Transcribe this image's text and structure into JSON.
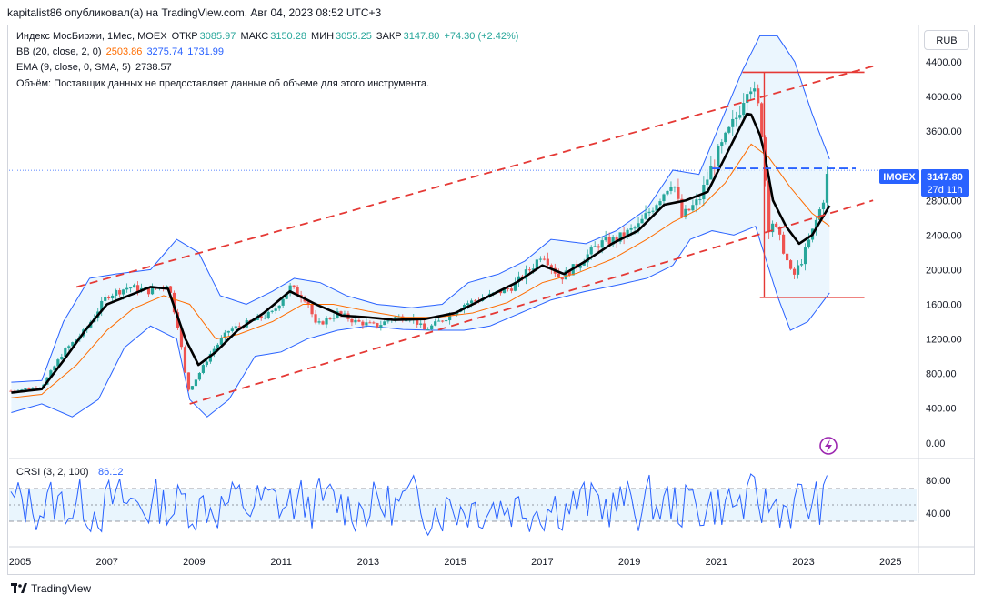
{
  "header": "kapitalist86 опубликовал(а) на TradingView.com, Авг 04, 2023 08:52 UTC+3",
  "currency_button": "RUB",
  "legend": {
    "symbol": "Индекс МосБиржи, 1Мес, MOEX",
    "open_label": "ОТКР",
    "open": "3085.97",
    "high_label": "МАКС",
    "high": "3150.28",
    "low_label": "МИН",
    "low": "3055.25",
    "close_label": "ЗАКР",
    "close": "3147.80",
    "change": "+74.30 (+2.42%)",
    "bb_label": "BB (20, close, 2, 0)",
    "bb_mid": "2503.86",
    "bb_up": "3275.74",
    "bb_low": "1731.99",
    "ema_label": "EMA (9, close, 0, SMA, 5)",
    "ema": "2738.57",
    "volume_note": "Объём: Поставщик данных не предоставляет данные об объеме для этого инструмента."
  },
  "price_tag": {
    "ticker": "IMOEX",
    "price": "3147.80",
    "countdown": "27d 11h"
  },
  "crsi": {
    "label": "CRSI (3, 2, 100)",
    "value": "86.12"
  },
  "footer": "TradingView",
  "colors": {
    "up": "#26a69a",
    "down": "#ef5350",
    "bb": "#2962ff",
    "bb_fill": "#e3f2fd",
    "bb_basis": "#ff6d00",
    "ema": "#000000",
    "trend": "#e53935",
    "hline_blue": "#2962ff",
    "price_tag": "#2962ff",
    "crsi": "#2962ff",
    "crsi_band": "#e3f2fd"
  },
  "chart_data": [
    {
      "type": "candlestick",
      "title": "Индекс МосБиржи, 1Мес, MOEX",
      "x_tick_labels": [
        "2005",
        "2007",
        "2009",
        "2011",
        "2013",
        "2015",
        "2017",
        "2019",
        "2021",
        "2023",
        "2025"
      ],
      "x_range": [
        2004.75,
        2025.6
      ],
      "y_tick_labels": [
        "0.00",
        "400.00",
        "800.00",
        "1200.00",
        "1600.00",
        "2000.00",
        "2400.00",
        "2800.00",
        "3600.00",
        "4000.00",
        "4400.00"
      ],
      "ylim": [
        -160,
        4820
      ],
      "last": {
        "open": 3085.97,
        "high": 3150.28,
        "low": 3055.25,
        "close": 3147.8,
        "ema": 2738.57,
        "bb_basis": 2503.86,
        "bb_upper": 3275.74,
        "bb_lower": 1731.99
      },
      "price_points": [
        [
          2004.8,
          600
        ],
        [
          2005.5,
          650
        ],
        [
          2006.0,
          1050
        ],
        [
          2006.5,
          1300
        ],
        [
          2007.0,
          1700
        ],
        [
          2007.5,
          1800
        ],
        [
          2008.0,
          1750
        ],
        [
          2008.4,
          1850
        ],
        [
          2008.65,
          1300
        ],
        [
          2008.85,
          600
        ],
        [
          2009.0,
          700
        ],
        [
          2009.4,
          1050
        ],
        [
          2009.8,
          1300
        ],
        [
          2010.3,
          1400
        ],
        [
          2010.8,
          1500
        ],
        [
          2011.2,
          1800
        ],
        [
          2011.6,
          1650
        ],
        [
          2011.8,
          1350
        ],
        [
          2012.3,
          1500
        ],
        [
          2012.7,
          1400
        ],
        [
          2013.2,
          1350
        ],
        [
          2013.6,
          1450
        ],
        [
          2014.0,
          1450
        ],
        [
          2014.3,
          1300
        ],
        [
          2014.8,
          1450
        ],
        [
          2015.2,
          1600
        ],
        [
          2015.8,
          1700
        ],
        [
          2016.3,
          1800
        ],
        [
          2016.8,
          2050
        ],
        [
          2017.0,
          2200
        ],
        [
          2017.4,
          1900
        ],
        [
          2017.8,
          2050
        ],
        [
          2018.3,
          2300
        ],
        [
          2018.7,
          2350
        ],
        [
          2019.2,
          2500
        ],
        [
          2019.8,
          2900
        ],
        [
          2020.0,
          3050
        ],
        [
          2020.2,
          2600
        ],
        [
          2020.6,
          2800
        ],
        [
          2020.9,
          3200
        ],
        [
          2021.2,
          3500
        ],
        [
          2021.5,
          3800
        ],
        [
          2021.75,
          4200
        ],
        [
          2021.95,
          3900
        ],
        [
          2022.1,
          3400
        ],
        [
          2022.17,
          2400
        ],
        [
          2022.25,
          2600
        ],
        [
          2022.5,
          2300
        ],
        [
          2022.75,
          1900
        ],
        [
          2023.0,
          2150
        ],
        [
          2023.25,
          2500
        ],
        [
          2023.45,
          2800
        ],
        [
          2023.55,
          3100
        ],
        [
          2023.6,
          3148
        ]
      ],
      "ema_points": [
        [
          2004.8,
          580
        ],
        [
          2005.5,
          620
        ],
        [
          2006.0,
          950
        ],
        [
          2006.5,
          1300
        ],
        [
          2007.0,
          1600
        ],
        [
          2007.5,
          1700
        ],
        [
          2008.0,
          1800
        ],
        [
          2008.4,
          1780
        ],
        [
          2008.8,
          1200
        ],
        [
          2009.1,
          900
        ],
        [
          2009.5,
          1050
        ],
        [
          2010.0,
          1300
        ],
        [
          2010.6,
          1500
        ],
        [
          2011.2,
          1750
        ],
        [
          2011.8,
          1600
        ],
        [
          2012.4,
          1470
        ],
        [
          2013.0,
          1450
        ],
        [
          2013.6,
          1420
        ],
        [
          2014.3,
          1430
        ],
        [
          2015.0,
          1500
        ],
        [
          2015.6,
          1650
        ],
        [
          2016.4,
          1850
        ],
        [
          2017.0,
          2050
        ],
        [
          2017.5,
          1950
        ],
        [
          2018.0,
          2100
        ],
        [
          2018.6,
          2300
        ],
        [
          2019.2,
          2450
        ],
        [
          2019.8,
          2750
        ],
        [
          2020.3,
          2800
        ],
        [
          2020.8,
          2900
        ],
        [
          2021.3,
          3400
        ],
        [
          2021.75,
          3850
        ],
        [
          2022.05,
          3500
        ],
        [
          2022.3,
          2800
        ],
        [
          2022.6,
          2500
        ],
        [
          2022.9,
          2300
        ],
        [
          2023.2,
          2400
        ],
        [
          2023.6,
          2739
        ]
      ],
      "bb_basis_points": [
        [
          2004.8,
          520
        ],
        [
          2005.5,
          560
        ],
        [
          2006.3,
          900
        ],
        [
          2007.0,
          1300
        ],
        [
          2007.6,
          1550
        ],
        [
          2008.3,
          1700
        ],
        [
          2008.9,
          1600
        ],
        [
          2009.5,
          1200
        ],
        [
          2010.0,
          1250
        ],
        [
          2010.8,
          1400
        ],
        [
          2011.5,
          1600
        ],
        [
          2012.2,
          1600
        ],
        [
          2013.0,
          1520
        ],
        [
          2013.8,
          1450
        ],
        [
          2014.6,
          1450
        ],
        [
          2015.4,
          1500
        ],
        [
          2016.2,
          1620
        ],
        [
          2017.0,
          1850
        ],
        [
          2017.8,
          1960
        ],
        [
          2018.6,
          2120
        ],
        [
          2019.4,
          2350
        ],
        [
          2020.0,
          2550
        ],
        [
          2020.6,
          2700
        ],
        [
          2021.2,
          3000
        ],
        [
          2021.8,
          3450
        ],
        [
          2022.2,
          3300
        ],
        [
          2022.7,
          2950
        ],
        [
          2023.2,
          2650
        ],
        [
          2023.6,
          2504
        ]
      ],
      "bb_upper_points": [
        [
          2004.8,
          700
        ],
        [
          2005.5,
          720
        ],
        [
          2006.0,
          1400
        ],
        [
          2006.6,
          1900
        ],
        [
          2007.2,
          1950
        ],
        [
          2008.0,
          2000
        ],
        [
          2008.6,
          2350
        ],
        [
          2009.1,
          2200
        ],
        [
          2009.6,
          1700
        ],
        [
          2010.2,
          1600
        ],
        [
          2010.8,
          1750
        ],
        [
          2011.3,
          1900
        ],
        [
          2011.9,
          1850
        ],
        [
          2012.5,
          1700
        ],
        [
          2013.2,
          1600
        ],
        [
          2014.0,
          1560
        ],
        [
          2014.7,
          1600
        ],
        [
          2015.3,
          1850
        ],
        [
          2016.0,
          1950
        ],
        [
          2016.6,
          2100
        ],
        [
          2017.2,
          2350
        ],
        [
          2018.0,
          2300
        ],
        [
          2018.7,
          2450
        ],
        [
          2019.4,
          2700
        ],
        [
          2020.0,
          3150
        ],
        [
          2020.6,
          3100
        ],
        [
          2021.1,
          3700
        ],
        [
          2021.6,
          4300
        ],
        [
          2022.0,
          4700
        ],
        [
          2022.4,
          4700
        ],
        [
          2022.8,
          4400
        ],
        [
          2023.2,
          3800
        ],
        [
          2023.6,
          3276
        ]
      ],
      "bb_lower_points": [
        [
          2004.8,
          350
        ],
        [
          2005.5,
          450
        ],
        [
          2006.2,
          300
        ],
        [
          2006.8,
          500
        ],
        [
          2007.4,
          1100
        ],
        [
          2008.0,
          1350
        ],
        [
          2008.6,
          1200
        ],
        [
          2008.9,
          500
        ],
        [
          2009.3,
          300
        ],
        [
          2009.8,
          500
        ],
        [
          2010.4,
          1000
        ],
        [
          2011.0,
          1050
        ],
        [
          2011.6,
          1200
        ],
        [
          2012.3,
          1300
        ],
        [
          2013.0,
          1350
        ],
        [
          2013.8,
          1310
        ],
        [
          2014.5,
          1300
        ],
        [
          2015.2,
          1300
        ],
        [
          2015.8,
          1350
        ],
        [
          2016.5,
          1500
        ],
        [
          2017.2,
          1650
        ],
        [
          2018.0,
          1750
        ],
        [
          2018.7,
          1820
        ],
        [
          2019.4,
          1900
        ],
        [
          2020.0,
          2050
        ],
        [
          2020.4,
          2350
        ],
        [
          2020.9,
          2450
        ],
        [
          2021.4,
          2400
        ],
        [
          2021.9,
          2500
        ],
        [
          2022.4,
          1700
        ],
        [
          2022.7,
          1300
        ],
        [
          2023.1,
          1400
        ],
        [
          2023.6,
          1732
        ]
      ],
      "trendlines": [
        {
          "from": [
            2006.3,
            1800
          ],
          "to": [
            2024.6,
            4350
          ],
          "style": "dashed"
        },
        {
          "from": [
            2008.9,
            450
          ],
          "to": [
            2024.6,
            2800
          ],
          "style": "dashed"
        }
      ],
      "hlines": [
        {
          "y": 4280,
          "x": [
            2021.6,
            2024.4
          ],
          "style": "solid",
          "color": "trend"
        },
        {
          "y": 1680,
          "x": [
            2022.0,
            2024.4
          ],
          "style": "solid",
          "color": "trend"
        },
        {
          "y": 3170,
          "x": [
            2020.9,
            2024.2
          ],
          "style": "dashed",
          "color": "hline_blue"
        }
      ],
      "vline": {
        "x": 2022.1,
        "y": [
          1680,
          4280
        ]
      }
    },
    {
      "type": "line",
      "title": "CRSI (3, 2, 100)",
      "y_tick_labels": [
        "40.00",
        "80.00"
      ],
      "ylim": [
        0,
        100
      ],
      "bands": [
        30,
        50,
        70
      ],
      "last": 86.12,
      "series_shape": "oscillating",
      "approx_range": [
        5,
        95
      ]
    }
  ]
}
